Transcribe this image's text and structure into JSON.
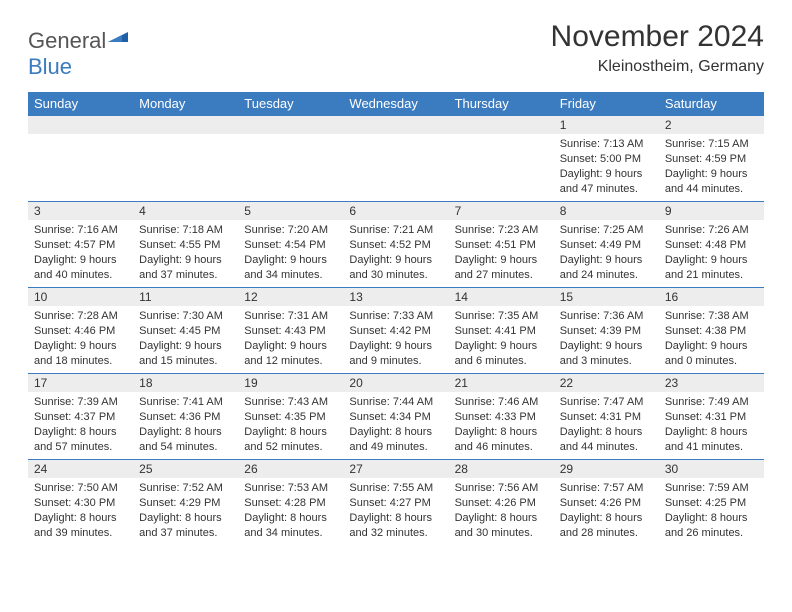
{
  "logo": {
    "general": "General",
    "blue": "Blue"
  },
  "title": "November 2024",
  "location": "Kleinostheim, Germany",
  "colors": {
    "header_bg": "#3b7bbf",
    "header_fg": "#ffffff",
    "daynum_bg": "#ededed",
    "border": "#3b7bbf",
    "text": "#333333",
    "logo_gray": "#555555",
    "logo_blue": "#3b7bbf",
    "background": "#ffffff"
  },
  "weekdays": [
    "Sunday",
    "Monday",
    "Tuesday",
    "Wednesday",
    "Thursday",
    "Friday",
    "Saturday"
  ],
  "weeks": [
    [
      {
        "empty": true
      },
      {
        "empty": true
      },
      {
        "empty": true
      },
      {
        "empty": true
      },
      {
        "empty": true
      },
      {
        "num": "1",
        "sunrise": "Sunrise: 7:13 AM",
        "sunset": "Sunset: 5:00 PM",
        "daylight": "Daylight: 9 hours and 47 minutes."
      },
      {
        "num": "2",
        "sunrise": "Sunrise: 7:15 AM",
        "sunset": "Sunset: 4:59 PM",
        "daylight": "Daylight: 9 hours and 44 minutes."
      }
    ],
    [
      {
        "num": "3",
        "sunrise": "Sunrise: 7:16 AM",
        "sunset": "Sunset: 4:57 PM",
        "daylight": "Daylight: 9 hours and 40 minutes."
      },
      {
        "num": "4",
        "sunrise": "Sunrise: 7:18 AM",
        "sunset": "Sunset: 4:55 PM",
        "daylight": "Daylight: 9 hours and 37 minutes."
      },
      {
        "num": "5",
        "sunrise": "Sunrise: 7:20 AM",
        "sunset": "Sunset: 4:54 PM",
        "daylight": "Daylight: 9 hours and 34 minutes."
      },
      {
        "num": "6",
        "sunrise": "Sunrise: 7:21 AM",
        "sunset": "Sunset: 4:52 PM",
        "daylight": "Daylight: 9 hours and 30 minutes."
      },
      {
        "num": "7",
        "sunrise": "Sunrise: 7:23 AM",
        "sunset": "Sunset: 4:51 PM",
        "daylight": "Daylight: 9 hours and 27 minutes."
      },
      {
        "num": "8",
        "sunrise": "Sunrise: 7:25 AM",
        "sunset": "Sunset: 4:49 PM",
        "daylight": "Daylight: 9 hours and 24 minutes."
      },
      {
        "num": "9",
        "sunrise": "Sunrise: 7:26 AM",
        "sunset": "Sunset: 4:48 PM",
        "daylight": "Daylight: 9 hours and 21 minutes."
      }
    ],
    [
      {
        "num": "10",
        "sunrise": "Sunrise: 7:28 AM",
        "sunset": "Sunset: 4:46 PM",
        "daylight": "Daylight: 9 hours and 18 minutes."
      },
      {
        "num": "11",
        "sunrise": "Sunrise: 7:30 AM",
        "sunset": "Sunset: 4:45 PM",
        "daylight": "Daylight: 9 hours and 15 minutes."
      },
      {
        "num": "12",
        "sunrise": "Sunrise: 7:31 AM",
        "sunset": "Sunset: 4:43 PM",
        "daylight": "Daylight: 9 hours and 12 minutes."
      },
      {
        "num": "13",
        "sunrise": "Sunrise: 7:33 AM",
        "sunset": "Sunset: 4:42 PM",
        "daylight": "Daylight: 9 hours and 9 minutes."
      },
      {
        "num": "14",
        "sunrise": "Sunrise: 7:35 AM",
        "sunset": "Sunset: 4:41 PM",
        "daylight": "Daylight: 9 hours and 6 minutes."
      },
      {
        "num": "15",
        "sunrise": "Sunrise: 7:36 AM",
        "sunset": "Sunset: 4:39 PM",
        "daylight": "Daylight: 9 hours and 3 minutes."
      },
      {
        "num": "16",
        "sunrise": "Sunrise: 7:38 AM",
        "sunset": "Sunset: 4:38 PM",
        "daylight": "Daylight: 9 hours and 0 minutes."
      }
    ],
    [
      {
        "num": "17",
        "sunrise": "Sunrise: 7:39 AM",
        "sunset": "Sunset: 4:37 PM",
        "daylight": "Daylight: 8 hours and 57 minutes."
      },
      {
        "num": "18",
        "sunrise": "Sunrise: 7:41 AM",
        "sunset": "Sunset: 4:36 PM",
        "daylight": "Daylight: 8 hours and 54 minutes."
      },
      {
        "num": "19",
        "sunrise": "Sunrise: 7:43 AM",
        "sunset": "Sunset: 4:35 PM",
        "daylight": "Daylight: 8 hours and 52 minutes."
      },
      {
        "num": "20",
        "sunrise": "Sunrise: 7:44 AM",
        "sunset": "Sunset: 4:34 PM",
        "daylight": "Daylight: 8 hours and 49 minutes."
      },
      {
        "num": "21",
        "sunrise": "Sunrise: 7:46 AM",
        "sunset": "Sunset: 4:33 PM",
        "daylight": "Daylight: 8 hours and 46 minutes."
      },
      {
        "num": "22",
        "sunrise": "Sunrise: 7:47 AM",
        "sunset": "Sunset: 4:31 PM",
        "daylight": "Daylight: 8 hours and 44 minutes."
      },
      {
        "num": "23",
        "sunrise": "Sunrise: 7:49 AM",
        "sunset": "Sunset: 4:31 PM",
        "daylight": "Daylight: 8 hours and 41 minutes."
      }
    ],
    [
      {
        "num": "24",
        "sunrise": "Sunrise: 7:50 AM",
        "sunset": "Sunset: 4:30 PM",
        "daylight": "Daylight: 8 hours and 39 minutes."
      },
      {
        "num": "25",
        "sunrise": "Sunrise: 7:52 AM",
        "sunset": "Sunset: 4:29 PM",
        "daylight": "Daylight: 8 hours and 37 minutes."
      },
      {
        "num": "26",
        "sunrise": "Sunrise: 7:53 AM",
        "sunset": "Sunset: 4:28 PM",
        "daylight": "Daylight: 8 hours and 34 minutes."
      },
      {
        "num": "27",
        "sunrise": "Sunrise: 7:55 AM",
        "sunset": "Sunset: 4:27 PM",
        "daylight": "Daylight: 8 hours and 32 minutes."
      },
      {
        "num": "28",
        "sunrise": "Sunrise: 7:56 AM",
        "sunset": "Sunset: 4:26 PM",
        "daylight": "Daylight: 8 hours and 30 minutes."
      },
      {
        "num": "29",
        "sunrise": "Sunrise: 7:57 AM",
        "sunset": "Sunset: 4:26 PM",
        "daylight": "Daylight: 8 hours and 28 minutes."
      },
      {
        "num": "30",
        "sunrise": "Sunrise: 7:59 AM",
        "sunset": "Sunset: 4:25 PM",
        "daylight": "Daylight: 8 hours and 26 minutes."
      }
    ]
  ]
}
